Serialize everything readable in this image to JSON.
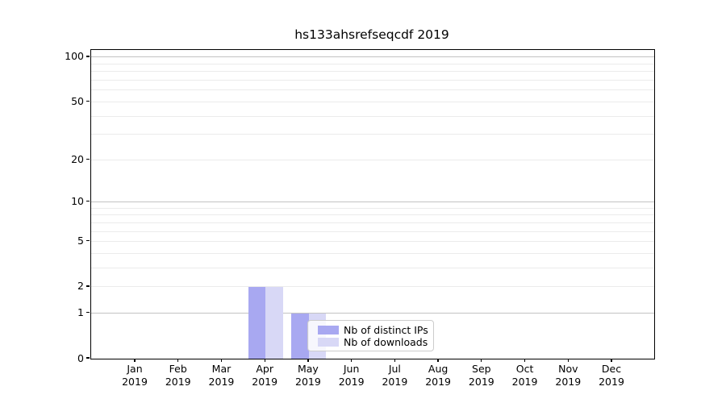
{
  "title": "hs133ahsrefseqcdf 2019",
  "colors": {
    "distinct_ips_bar": "#a8a8f1",
    "downloads_bar": "#d8d8f6",
    "major_grid": "#c3c3c3",
    "minor_grid": "#ebebeb",
    "axis": "#000000",
    "legend_border": "#cccccc"
  },
  "legend": {
    "items": [
      {
        "label": "Nb of distinct IPs",
        "color": "#a8a8f1"
      },
      {
        "label": "Nb of downloads",
        "color": "#d8d8f6"
      }
    ]
  },
  "chart_data": {
    "type": "bar",
    "title": "hs133ahsrefseqcdf 2019",
    "categories": [
      "Jan 2019",
      "Feb 2019",
      "Mar 2019",
      "Apr 2019",
      "May 2019",
      "Jun 2019",
      "Jul 2019",
      "Aug 2019",
      "Sep 2019",
      "Oct 2019",
      "Nov 2019",
      "Dec 2019"
    ],
    "series": [
      {
        "name": "Nb of distinct IPs",
        "color": "#a8a8f1",
        "values": [
          0,
          0,
          0,
          2,
          1,
          0,
          0,
          0,
          0,
          0,
          0,
          0
        ]
      },
      {
        "name": "Nb of downloads",
        "color": "#d8d8f6",
        "values": [
          0,
          0,
          0,
          2,
          1,
          0,
          0,
          0,
          0,
          0,
          0,
          0
        ]
      }
    ],
    "xlabel": "",
    "ylabel": "",
    "yscale": "log1p",
    "ylim": [
      0,
      112
    ],
    "yticks": [
      0,
      1,
      2,
      5,
      10,
      20,
      50,
      100
    ],
    "gridlines": {
      "major": [
        1,
        10,
        100
      ],
      "minor": [
        2,
        3,
        4,
        5,
        6,
        7,
        8,
        9,
        20,
        30,
        40,
        50,
        60,
        70,
        80,
        90
      ]
    },
    "grid": true,
    "legend_position": "lower center-right inside plot"
  }
}
